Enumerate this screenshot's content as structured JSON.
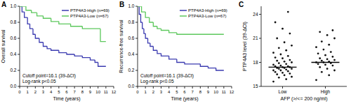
{
  "chart_data": [
    {
      "type": "line",
      "title": "A",
      "x_label": "Time (years)",
      "y_label": "Overall survival",
      "xlim": [
        0,
        12
      ],
      "xticks": [
        0,
        1,
        2,
        3,
        4,
        5,
        6,
        7,
        8,
        9,
        10,
        11,
        12
      ],
      "ylim": [
        0,
        1
      ],
      "yticks": [
        {
          "value": 0,
          "label": "0.0"
        },
        {
          "value": 0.2,
          "label": "0.2"
        },
        {
          "value": 0.4,
          "label": "0.4"
        },
        {
          "value": 0.6,
          "label": "0.6"
        },
        {
          "value": 0.8,
          "label": "0.8"
        },
        {
          "value": 1,
          "label": "1.0"
        }
      ],
      "legend": "upper right",
      "annotations": [
        "Cutoff point=16.1 (39-ΔCt)",
        "Log-rank  p<0.05"
      ],
      "series": [
        {
          "name": "PTP4A3-High (n=69)",
          "color": "#3a3ab0",
          "line_style": "step",
          "x": [
            0,
            0.3,
            0.6,
            1,
            1.3,
            1.7,
            2,
            2.5,
            3,
            3.5,
            4,
            5,
            6,
            7,
            8,
            9,
            9.6,
            10,
            11
          ],
          "values": [
            1,
            0.93,
            0.86,
            0.78,
            0.72,
            0.65,
            0.6,
            0.55,
            0.5,
            0.47,
            0.45,
            0.42,
            0.4,
            0.38,
            0.36,
            0.33,
            0.3,
            0.25,
            0.25
          ]
        },
        {
          "name": "PTP4A3-Low (n=67)",
          "color": "#5cc85c",
          "line_style": "step",
          "x": [
            0,
            0.8,
            1.5,
            2.2,
            3,
            4,
            5,
            6.5,
            8,
            10.3,
            11
          ],
          "values": [
            1,
            0.95,
            0.92,
            0.88,
            0.85,
            0.81,
            0.78,
            0.75,
            0.72,
            0.56,
            0.56
          ]
        }
      ]
    },
    {
      "type": "line",
      "title": "B",
      "x_label": "Time (years)",
      "y_label": "Recurrence-free survival",
      "xlim": [
        0,
        12
      ],
      "xticks": [
        0,
        1,
        2,
        3,
        4,
        5,
        6,
        7,
        8,
        9,
        10,
        11,
        12
      ],
      "ylim": [
        0,
        1
      ],
      "yticks": [
        {
          "value": 0,
          "label": "0.0"
        },
        {
          "value": 0.2,
          "label": "0.2"
        },
        {
          "value": 0.4,
          "label": "0.4"
        },
        {
          "value": 0.6,
          "label": "0.6"
        },
        {
          "value": 0.8,
          "label": "0.8"
        },
        {
          "value": 1,
          "label": "1.0"
        }
      ],
      "legend": "upper right",
      "annotations": [
        "Cutoff point=16.1 (39-ΔCt)",
        "Log-rank  p<0.05"
      ],
      "series": [
        {
          "name": "PTP4A3-High (n=69)",
          "color": "#3a3ab0",
          "line_style": "step",
          "x": [
            0,
            0.2,
            0.4,
            0.6,
            0.8,
            1,
            1.3,
            1.6,
            2,
            2.5,
            3,
            4,
            5,
            6,
            8,
            9,
            10,
            11
          ],
          "values": [
            1,
            0.9,
            0.8,
            0.72,
            0.66,
            0.6,
            0.54,
            0.5,
            0.45,
            0.41,
            0.38,
            0.34,
            0.3,
            0.28,
            0.25,
            0.23,
            0.2,
            0.2
          ]
        },
        {
          "name": "PTP4A3-Low (n=67)",
          "color": "#5cc85c",
          "line_style": "step",
          "x": [
            0,
            0.5,
            1,
            1.5,
            2,
            2.5,
            3,
            4,
            5,
            11
          ],
          "values": [
            1,
            0.93,
            0.86,
            0.8,
            0.75,
            0.72,
            0.7,
            0.67,
            0.65,
            0.65
          ]
        }
      ]
    },
    {
      "type": "scatter",
      "title": "C",
      "x_label": "AFP (>/<= 200 ng/ml)",
      "y_label": "PTP4A3 level (39-ΔCt)",
      "categories": [
        "Low",
        "High"
      ],
      "ylim": [
        15,
        25
      ],
      "yticks": [
        15,
        18,
        21,
        24
      ],
      "color": "#111111",
      "marker": "circle",
      "values": [
        [
          15.6,
          15.9,
          16.1,
          16.2,
          16.4,
          16.5,
          16.6,
          16.7,
          16.8,
          16.9,
          17.0,
          17.0,
          17.1,
          17.2,
          17.2,
          17.3,
          17.3,
          17.4,
          17.4,
          17.5,
          17.5,
          17.6,
          17.7,
          17.8,
          17.9,
          18.0,
          18.1,
          18.2,
          18.3,
          18.5,
          18.6,
          18.8,
          19.0,
          19.2,
          19.5,
          19.8,
          20.1,
          20.5,
          21.0,
          21.6,
          22.2,
          23.0,
          24.3
        ],
        [
          15.8,
          16.4,
          16.8,
          17.0,
          17.2,
          17.4,
          17.6,
          17.7,
          17.8,
          17.9,
          18.0,
          18.0,
          18.1,
          18.2,
          18.3,
          18.4,
          18.5,
          18.7,
          18.9,
          19.1,
          19.3,
          19.6,
          19.9,
          20.2,
          20.6,
          21.0,
          21.4,
          21.8,
          22.0
        ]
      ],
      "medians": [
        17.4,
        18.0
      ]
    }
  ]
}
